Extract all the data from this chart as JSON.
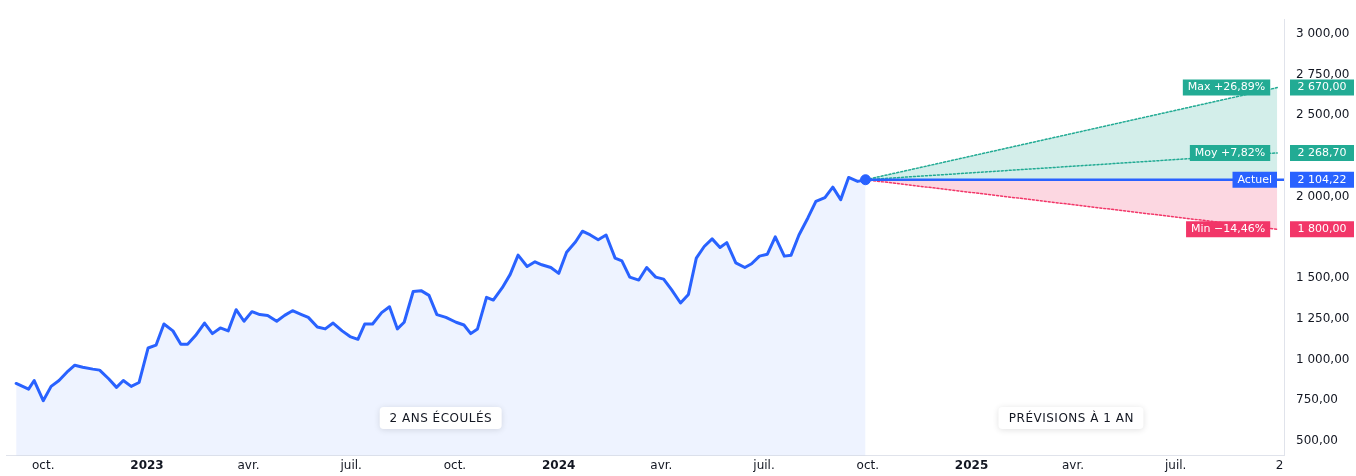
{
  "chart_data": {
    "type": "line",
    "annotations": [
      "2 ANS ÉCOULÉS",
      "PRÉVISIONS À 1 AN"
    ],
    "xlim": [
      "2022-08-29",
      "2025-10-05"
    ],
    "xticks": [
      {
        "value": "2022-10-01",
        "label": "oct."
      },
      {
        "value": "2023-01-01",
        "label": "2023"
      },
      {
        "value": "2023-04-01",
        "label": "avr."
      },
      {
        "value": "2023-07-01",
        "label": "juil."
      },
      {
        "value": "2023-10-01",
        "label": "oct."
      },
      {
        "value": "2024-01-01",
        "label": "2024"
      },
      {
        "value": "2024-04-01",
        "label": "avr."
      },
      {
        "value": "2024-07-01",
        "label": "juil."
      },
      {
        "value": "2024-10-01",
        "label": "oct."
      },
      {
        "value": "2025-01-01",
        "label": "2025"
      },
      {
        "value": "2025-04-01",
        "label": "avr."
      },
      {
        "value": "2025-07-01",
        "label": "juil."
      },
      {
        "value": "2025-10-01",
        "label": "2"
      }
    ],
    "ylim": [
      410,
      3090
    ],
    "yticks": [
      {
        "value": 500,
        "label": "500,00"
      },
      {
        "value": 750,
        "label": "750,00"
      },
      {
        "value": 1000,
        "label": "1 000,00"
      },
      {
        "value": 1250,
        "label": "1 250,00"
      },
      {
        "value": 1500,
        "label": "1 500,00"
      },
      {
        "value": 2000,
        "label": "2 000,00"
      },
      {
        "value": 2500,
        "label": "2 500,00"
      },
      {
        "value": 2750,
        "label": "2 750,00"
      },
      {
        "value": 3000,
        "label": "3 000,00"
      }
    ],
    "grid": false,
    "legend": false,
    "series": [
      {
        "type": "area",
        "color": "#2962ff",
        "x": [
          "2022-09-07",
          "2022-09-18",
          "2022-09-23",
          "2022-10-01",
          "2022-10-08",
          "2022-10-15",
          "2022-10-23",
          "2022-10-29",
          "2022-11-05",
          "2022-11-14",
          "2022-11-20",
          "2022-11-28",
          "2022-12-05",
          "2022-12-11",
          "2022-12-18",
          "2022-12-25",
          "2023-01-02",
          "2023-01-09",
          "2023-01-16",
          "2023-01-24",
          "2023-01-31",
          "2023-02-06",
          "2023-02-13",
          "2023-02-21",
          "2023-02-28",
          "2023-03-07",
          "2023-03-14",
          "2023-03-21",
          "2023-03-28",
          "2023-04-04",
          "2023-04-11",
          "2023-04-18",
          "2023-04-26",
          "2023-05-03",
          "2023-05-10",
          "2023-05-18",
          "2023-05-24",
          "2023-06-01",
          "2023-06-08",
          "2023-06-15",
          "2023-06-23",
          "2023-06-30",
          "2023-07-07",
          "2023-07-13",
          "2023-07-20",
          "2023-07-28",
          "2023-08-04",
          "2023-08-11",
          "2023-08-17",
          "2023-08-25",
          "2023-09-01",
          "2023-09-08",
          "2023-09-15",
          "2023-09-23",
          "2023-10-02",
          "2023-10-09",
          "2023-10-15",
          "2023-10-21",
          "2023-10-29",
          "2023-11-04",
          "2023-11-12",
          "2023-11-19",
          "2023-11-26",
          "2023-12-04",
          "2023-12-11",
          "2023-12-17",
          "2023-12-25",
          "2024-01-01",
          "2024-01-08",
          "2024-01-16",
          "2024-01-22",
          "2024-01-29",
          "2024-02-05",
          "2024-02-12",
          "2024-02-20",
          "2024-02-26",
          "2024-03-04",
          "2024-03-12",
          "2024-03-19",
          "2024-03-27",
          "2024-04-03",
          "2024-04-10",
          "2024-04-18",
          "2024-04-25",
          "2024-05-02",
          "2024-05-09",
          "2024-05-16",
          "2024-05-23",
          "2024-05-29",
          "2024-06-06",
          "2024-06-14",
          "2024-06-20",
          "2024-06-27",
          "2024-07-04",
          "2024-07-11",
          "2024-07-19",
          "2024-07-25",
          "2024-08-01",
          "2024-08-09",
          "2024-08-16",
          "2024-08-24",
          "2024-08-31",
          "2024-09-07",
          "2024-09-14",
          "2024-09-22",
          "2024-09-29"
        ],
        "values": [
          853,
          818,
          871,
          747,
          835,
          871,
          929,
          965,
          953,
          941,
          935,
          882,
          829,
          871,
          835,
          859,
          1071,
          1088,
          1218,
          1176,
          1094,
          1094,
          1147,
          1224,
          1159,
          1194,
          1176,
          1306,
          1235,
          1294,
          1276,
          1271,
          1235,
          1271,
          1300,
          1276,
          1259,
          1200,
          1188,
          1224,
          1176,
          1141,
          1124,
          1218,
          1218,
          1288,
          1324,
          1188,
          1229,
          1418,
          1423,
          1394,
          1276,
          1259,
          1229,
          1212,
          1159,
          1188,
          1382,
          1365,
          1441,
          1523,
          1641,
          1571,
          1600,
          1582,
          1565,
          1529,
          1659,
          1723,
          1788,
          1765,
          1735,
          1765,
          1623,
          1606,
          1506,
          1488,
          1565,
          1506,
          1494,
          1429,
          1347,
          1400,
          1623,
          1694,
          1741,
          1688,
          1718,
          1594,
          1565,
          1588,
          1635,
          1647,
          1753,
          1635,
          1641,
          1765,
          1871,
          1971,
          1994,
          2059,
          1982,
          2118,
          2094,
          2104.22
        ]
      },
      {
        "name": "Actuel",
        "color": "#2962ff",
        "x": [
          "2024-09-29",
          "2025-10-05"
        ],
        "values": [
          2104.22,
          2104.22
        ],
        "value_labels": [
          null,
          "2 104,22"
        ]
      },
      {
        "name": "Max +26,89%",
        "color": "#22ab94",
        "line_style": "dotted",
        "x": [
          "2024-09-29",
          "2025-09-29"
        ],
        "values": [
          2104.22,
          2670
        ],
        "value_labels": [
          null,
          "2 670,00"
        ],
        "lower": [
          2104.22,
          2104.22
        ],
        "upper": [
          2104.22,
          2670
        ]
      },
      {
        "name": "Moy +7,82%",
        "color": "#22ab94",
        "line_style": "dotted",
        "x": [
          "2024-09-29",
          "2025-09-29"
        ],
        "values": [
          2104.22,
          2268.7
        ],
        "value_labels": [
          null,
          "2 268,70"
        ]
      },
      {
        "name": "Min −14,46%",
        "color": "#f23668",
        "line_style": "dotted",
        "x": [
          "2024-09-29",
          "2025-09-29"
        ],
        "values": [
          2104.22,
          1800
        ],
        "value_labels": [
          null,
          "1 800,00"
        ],
        "lower": [
          2104.22,
          1800
        ],
        "upper": [
          2104.22,
          2104.22
        ]
      },
      {
        "type": "scatter",
        "color": "#2962ff",
        "x": [
          "2024-09-29"
        ],
        "values": [
          2104.22
        ]
      }
    ]
  }
}
